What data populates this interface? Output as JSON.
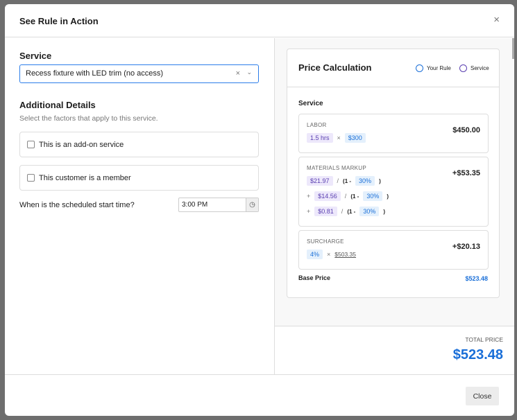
{
  "title": "See Rule in Action",
  "left": {
    "service_label": "Service",
    "service_value": "Recess fixture with LED trim (no access)",
    "details_title": "Additional Details",
    "details_sub": "Select the factors that apply to this service.",
    "checkboxes": [
      {
        "label": "This is an add-on service",
        "checked": false
      },
      {
        "label": "This customer is a member",
        "checked": false
      }
    ],
    "time_question": "When is the scheduled start time?",
    "time_value": "3:00 PM"
  },
  "calc": {
    "title": "Price Calculation",
    "legend": [
      {
        "label": "Your Rule",
        "color": "#1a6fd8"
      },
      {
        "label": "Service",
        "color": "#5a3fb0"
      }
    ],
    "section": "Service",
    "labor": {
      "label": "LABOR",
      "hours": "1.5 hrs",
      "rate": "$300",
      "value": "$450.00"
    },
    "materials": {
      "label": "MATERIALS MARKUP",
      "value": "+$53.35",
      "lines": [
        {
          "amount": "$21.97",
          "pct": "30%"
        },
        {
          "amount": "$14.56",
          "pct": "30%"
        },
        {
          "amount": "$0.81",
          "pct": "30%"
        }
      ],
      "div": "/",
      "open": "(1 -",
      "close": ")",
      "plus": "+"
    },
    "surcharge": {
      "label": "SURCHARGE",
      "pct": "4%",
      "base": "$503.35",
      "value": "+$20.13"
    },
    "times": "×",
    "base_label": "Base Price",
    "base_value": "$523.48"
  },
  "total": {
    "label": "TOTAL PRICE",
    "value": "$523.48"
  },
  "footer": {
    "close": "Close"
  },
  "icons": {
    "close": "×",
    "clear": "×",
    "chevron": "⌄",
    "clock": "◷"
  }
}
